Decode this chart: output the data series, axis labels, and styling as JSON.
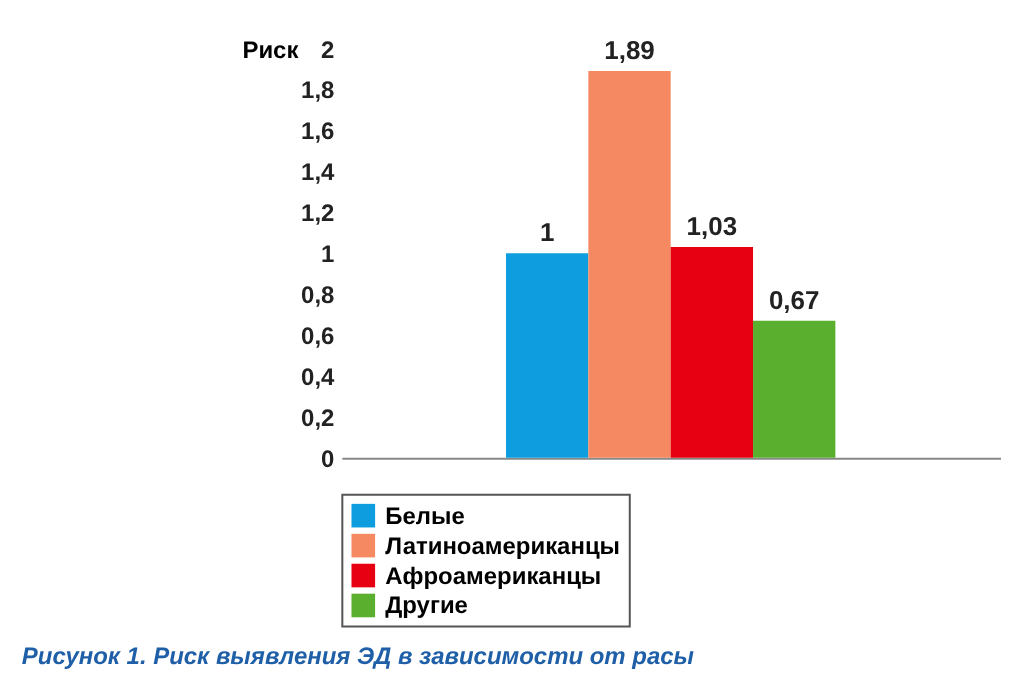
{
  "chart_data": {
    "type": "bar",
    "ylabel": "Риск",
    "categories": [
      null
    ],
    "series": [
      {
        "name": "Белые",
        "color": "#0e9ee0",
        "values": [
          1
        ],
        "value_labels": [
          "1"
        ]
      },
      {
        "name": "Латиноамериканцы",
        "color": "#f58a62",
        "values": [
          1.89
        ],
        "value_labels": [
          "1,89"
        ]
      },
      {
        "name": "Афроамериканцы",
        "color": "#e60012",
        "values": [
          1.03
        ],
        "value_labels": [
          "1,03"
        ]
      },
      {
        "name": "Другие",
        "color": "#5aaf2e",
        "values": [
          0.67
        ],
        "value_labels": [
          "0,67"
        ]
      }
    ],
    "ylim": [
      0,
      2
    ],
    "yticks": [
      0,
      {
        "value": 0.2,
        "label": "0,2"
      },
      {
        "value": 0.4,
        "label": "0,4"
      },
      {
        "value": 0.6,
        "label": "0,6"
      },
      {
        "value": 0.8,
        "label": "0,8"
      },
      1,
      {
        "value": 1.2,
        "label": "1,2"
      },
      {
        "value": 1.4,
        "label": "1,4"
      },
      {
        "value": 1.6,
        "label": "1,6"
      },
      {
        "value": 1.8,
        "label": "1,8"
      },
      2
    ],
    "grid": false,
    "legend": "bottom",
    "annotations": [
      "Рисунок 1. Риск выявления ЭД в зависимости от расы"
    ]
  }
}
